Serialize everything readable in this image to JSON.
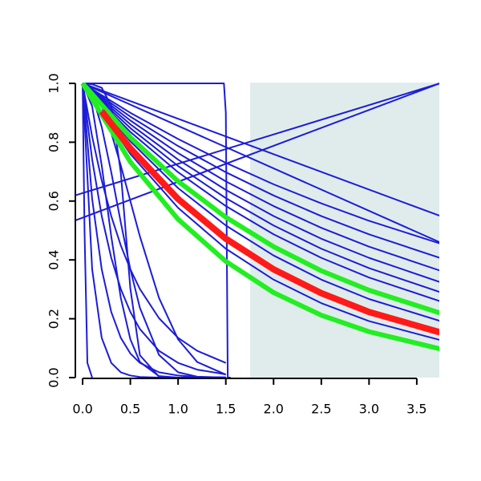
{
  "chart_data": {
    "type": "line",
    "xlim": [
      -0.076,
      3.736
    ],
    "ylim": [
      0,
      1
    ],
    "xticks": [
      {
        "value": 0,
        "label": "0.0"
      },
      {
        "value": 0.5,
        "label": "0.5"
      },
      {
        "value": 1,
        "label": "1.0"
      },
      {
        "value": 1.5,
        "label": "1.5"
      },
      {
        "value": 2,
        "label": "2.0"
      },
      {
        "value": 2.5,
        "label": "2.5"
      },
      {
        "value": 3,
        "label": "3.0"
      },
      {
        "value": 3.5,
        "label": "3.5"
      }
    ],
    "yticks": [
      {
        "value": 0,
        "label": "0.0"
      },
      {
        "value": 0.2,
        "label": "0.2"
      },
      {
        "value": 0.4,
        "label": "0.4"
      },
      {
        "value": 0.6,
        "label": "0.6"
      },
      {
        "value": 0.8,
        "label": "0.8"
      },
      {
        "value": 1,
        "label": "1.0"
      }
    ],
    "shaded_xlim": [
      1.755,
      3.736
    ],
    "shade_color": "#e0ecec",
    "series": [
      {
        "color": "#1c1cd8",
        "width": 2,
        "x": [
          0,
          0.5,
          1,
          1.5,
          2,
          2.5,
          3,
          3.74
        ],
        "values": [
          1,
          0.9,
          0.811,
          0.73,
          0.657,
          0.592,
          0.533,
          0.456
        ]
      },
      {
        "color": "#1c1cd8",
        "width": 2,
        "x": [
          0,
          0.5,
          1,
          1.5,
          2,
          2.5,
          3,
          3.74
        ],
        "values": [
          1,
          0.887,
          0.787,
          0.698,
          0.619,
          0.549,
          0.487,
          0.407
        ]
      },
      {
        "color": "#1c1cd8",
        "width": 2,
        "x": [
          0,
          0.5,
          1,
          1.5,
          2,
          2.5,
          3,
          3.74
        ],
        "values": [
          1,
          0.874,
          0.763,
          0.667,
          0.583,
          0.509,
          0.445,
          0.364
        ]
      },
      {
        "color": "#1c1cd8",
        "width": 2,
        "x": [
          0,
          0.5,
          1,
          1.5,
          2,
          2.5,
          3,
          3.74
        ],
        "values": [
          1,
          0.861,
          0.741,
          0.638,
          0.549,
          0.472,
          0.407,
          0.325
        ]
      },
      {
        "color": "#1c1cd8",
        "width": 2,
        "x": [
          0,
          0.5,
          1,
          1.5,
          2,
          2.5,
          3,
          3.74
        ],
        "values": [
          1,
          0.848,
          0.719,
          0.61,
          0.517,
          0.438,
          0.372,
          0.291
        ]
      },
      {
        "color": "#1c1cd8",
        "width": 2,
        "x": [
          0,
          0.5,
          1,
          1.5,
          2,
          2.5,
          3,
          3.74
        ],
        "values": [
          1,
          0.835,
          0.698,
          0.583,
          0.487,
          0.407,
          0.34,
          0.26
        ]
      },
      {
        "color": "#1c1cd8",
        "width": 2,
        "x": [
          0,
          0.5,
          1,
          1.5,
          2,
          2.5,
          3,
          3.74
        ],
        "values": [
          1,
          0.803,
          0.644,
          0.517,
          0.415,
          0.333,
          0.267,
          0.193
        ]
      },
      {
        "color": "#1c1cd8",
        "width": 2,
        "x": [
          0,
          0.5,
          1,
          1.5,
          2,
          2.5,
          3,
          3.74
        ],
        "values": [
          1,
          0.76,
          0.577,
          0.438,
          0.333,
          0.253,
          0.192,
          0.128
        ]
      },
      {
        "color": "#1c1cd8",
        "width": 2,
        "x": [
          0,
          3.74
        ],
        "values": [
          1,
          0.55
        ]
      },
      {
        "color": "#1c1cd8",
        "width": 2,
        "x": [
          0,
          3.74
        ],
        "values": [
          1,
          0.46
        ]
      },
      {
        "color": "#1c1cd8",
        "width": 2,
        "x": [
          -0.07,
          3.74
        ],
        "values": [
          0.62,
          1
        ]
      },
      {
        "color": "#1c1cd8",
        "width": 2,
        "x": [
          -0.07,
          3.74
        ],
        "values": [
          0.535,
          1
        ]
      },
      {
        "color": "#1c1cd8",
        "width": 2,
        "x": [
          0,
          1.48,
          1.5,
          1.52,
          1.55
        ],
        "values": [
          1,
          1,
          0.9,
          0,
          0
        ]
      },
      {
        "color": "#1c1cd8",
        "width": 2,
        "x": [
          0,
          0.1,
          0.2,
          0.3,
          0.4,
          0.5,
          0.6,
          0.8,
          1,
          1.2,
          1.5
        ],
        "values": [
          1,
          0.997,
          0.985,
          0.924,
          0.697,
          0.303,
          0.076,
          0.003,
          0,
          0,
          0
        ]
      },
      {
        "color": "#1c1cd8",
        "width": 2,
        "x": [
          0,
          0.1,
          0.2,
          0.3,
          0.4,
          0.5,
          0.6,
          0.8,
          1,
          1.2,
          1.5
        ],
        "values": [
          1,
          0.819,
          0.67,
          0.549,
          0.449,
          0.368,
          0.301,
          0.202,
          0.135,
          0.091,
          0.05
        ]
      },
      {
        "color": "#1c1cd8",
        "width": 2,
        "x": [
          0,
          0.1,
          0.2,
          0.3,
          0.4,
          0.5,
          0.6,
          0.8,
          1,
          1.2,
          1.5
        ],
        "values": [
          1,
          0.741,
          0.549,
          0.407,
          0.301,
          0.223,
          0.165,
          0.091,
          0.05,
          0.027,
          0.011
        ]
      },
      {
        "color": "#1c1cd8",
        "width": 2,
        "x": [
          0,
          0.1,
          0.2,
          0.3,
          0.4,
          0.5,
          0.6,
          0.8,
          1,
          1.2,
          1.5
        ],
        "values": [
          1,
          0.607,
          0.368,
          0.223,
          0.135,
          0.082,
          0.05,
          0.018,
          0.007,
          0.002,
          0.001
        ]
      },
      {
        "color": "#1c1cd8",
        "width": 2,
        "x": [
          0,
          0.1,
          0.2,
          0.3,
          0.4,
          0.5,
          0.6,
          0.8,
          1,
          1.2,
          1.5
        ],
        "values": [
          1,
          0.368,
          0.135,
          0.05,
          0.018,
          0.007,
          0.002,
          0,
          0,
          0,
          0
        ]
      },
      {
        "color": "#1c1cd8",
        "width": 2,
        "x": [
          0,
          0.1,
          0.2,
          0.3,
          0.4,
          0.5,
          0.6,
          0.8,
          1,
          1.2,
          1.5
        ],
        "values": [
          1,
          0.961,
          0.852,
          0.698,
          0.527,
          0.368,
          0.237,
          0.077,
          0.018,
          0.003,
          0
        ]
      },
      {
        "color": "#1c1cd8",
        "width": 2,
        "x": [
          0,
          0.1,
          0.2,
          0.3,
          0.4,
          0.5,
          0.6,
          0.8,
          1,
          1.2,
          1.5
        ],
        "values": [
          1,
          0.98,
          0.922,
          0.832,
          0.721,
          0.6,
          0.48,
          0.271,
          0.13,
          0.053,
          0.01
        ]
      },
      {
        "color": "#1c1cd8",
        "width": 2,
        "x": [
          0,
          0.1,
          0.2,
          0.3,
          0.4,
          0.5,
          0.6,
          0.8,
          1,
          1.2,
          1.5
        ],
        "values": [
          1,
          0.922,
          0.721,
          0.48,
          0.271,
          0.13,
          0.053,
          0.005,
          0,
          0,
          0
        ]
      },
      {
        "color": "#1c1cd8",
        "width": 2,
        "x": [
          0,
          0.02,
          0.05,
          0.1
        ],
        "values": [
          1,
          0.5,
          0.05,
          0
        ]
      },
      {
        "color": "#22ee22",
        "width": 6,
        "x": [
          0,
          0.5,
          1,
          1.5,
          2,
          2.5,
          3,
          3.74
        ],
        "values": [
          1,
          0.817,
          0.667,
          0.545,
          0.445,
          0.363,
          0.297,
          0.22
        ]
      },
      {
        "color": "#22ee22",
        "width": 6,
        "x": [
          0,
          0.5,
          1,
          1.5,
          2,
          2.5,
          3,
          3.74
        ],
        "values": [
          1,
          0.733,
          0.538,
          0.395,
          0.289,
          0.212,
          0.156,
          0.098
        ]
      },
      {
        "color": "#ff1a1a",
        "width": 8,
        "x": [
          0.2,
          0.5,
          1,
          1.5,
          2,
          2.5,
          3,
          3.74
        ],
        "values": [
          0.905,
          0.779,
          0.607,
          0.472,
          0.368,
          0.287,
          0.223,
          0.154
        ]
      }
    ]
  }
}
